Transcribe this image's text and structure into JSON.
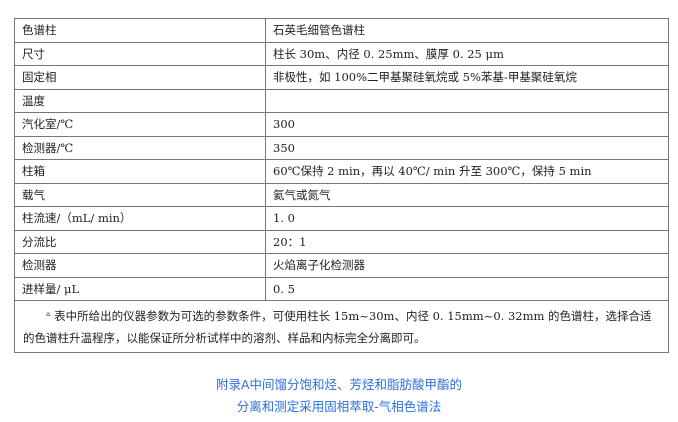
{
  "table": {
    "rows": [
      {
        "param": "色谱柱",
        "value": "石英毛细管色谱柱"
      },
      {
        "param": "尺寸",
        "value": "柱长 30m、内径 0. 25mm、膜厚 0. 25 μm"
      },
      {
        "param": "固定相",
        "value": "非极性，如 100%二甲基聚硅氧烷或 5%苯基-甲基聚硅氧烷"
      },
      {
        "param": "温度",
        "value": ""
      },
      {
        "param": "汽化室/℃",
        "value": "300"
      },
      {
        "param": "检测器/℃",
        "value": "350"
      },
      {
        "param": "柱箱",
        "value": "60℃保持 2 min，再以 40℃/ min 升至 300℃，保持 5 min"
      },
      {
        "param": "载气",
        "value": "氦气或氮气"
      },
      {
        "param": "柱流速/（mL/ min）",
        "value": "1. 0"
      },
      {
        "param": "分流比",
        "value": "20：1"
      },
      {
        "param": "检测器",
        "value": "火焰离子化检测器"
      },
      {
        "param": "进样量/ μL",
        "value": "0. 5"
      }
    ],
    "note": "ᵃ 表中所给出的仪器参数为可选的参数条件，可使用柱长 15m~30m、内径 0. 15mm~0. 32mm 的色谱柱，选择合适的色谱柱升温程序，以能保证所分析试样中的溶剂、样品和内标完全分离即可。"
  },
  "caption": {
    "line1": "附录A中间馏分饱和烃、芳烃和脂肪酸甲酯的",
    "line2": "分离和测定采用固相萃取-气相色谱法"
  }
}
